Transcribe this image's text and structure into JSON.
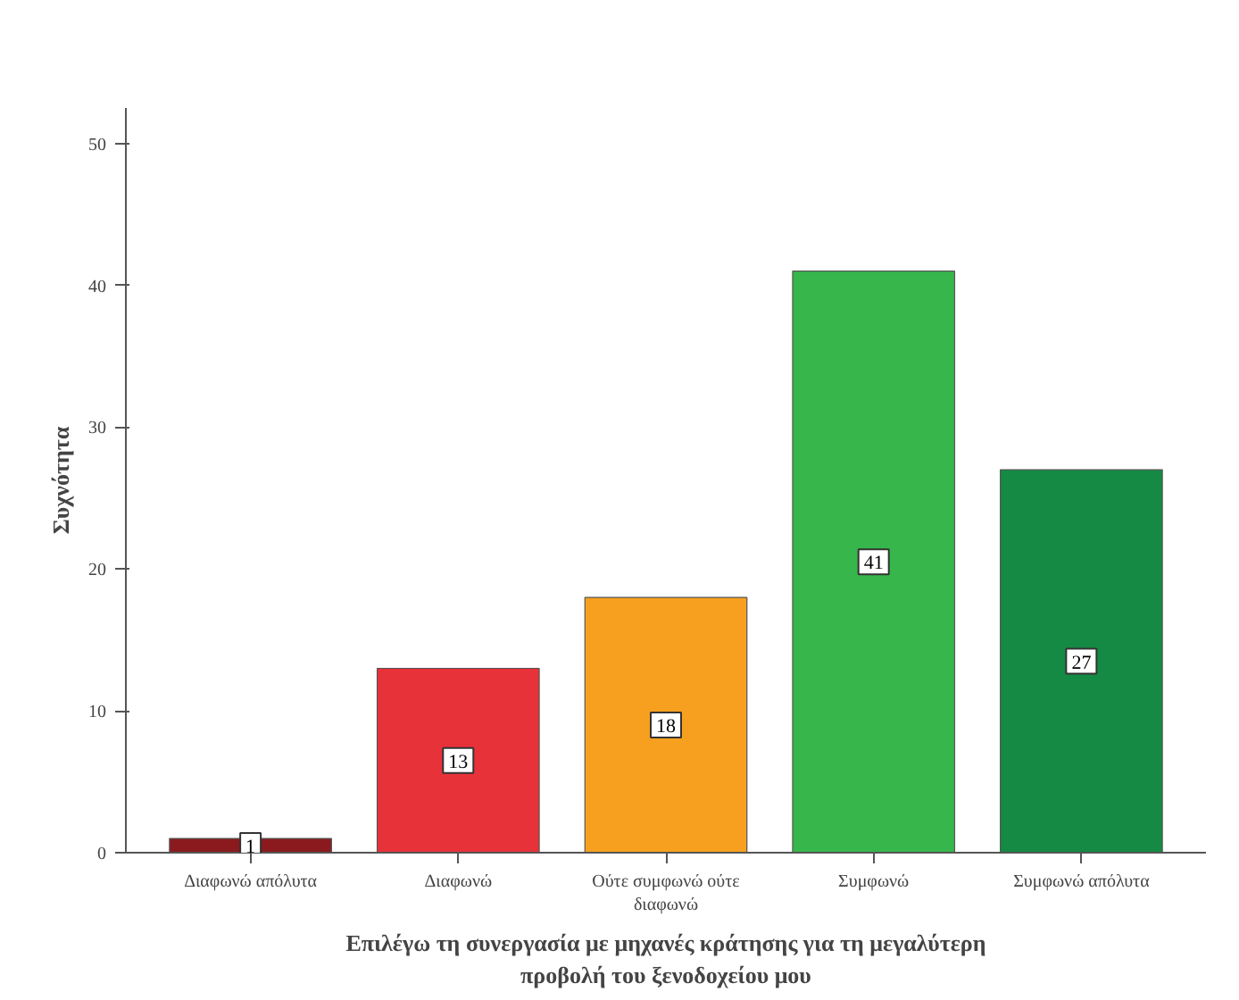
{
  "chart_data": {
    "type": "bar",
    "xlabel": "Επιλέγω τη συνεργασία με μηχανές κράτησης για τη μεγαλύτερη\nπροβολή του ξενοδοχείου μου",
    "ylabel": "Συχνότητα",
    "categories": [
      "Διαφωνώ απόλυτα",
      "Διαφωνώ",
      "Ούτε συμφωνώ ούτε\nδιαφωνώ",
      "Συμφωνώ",
      "Συμφωνώ απόλυτα"
    ],
    "values": [
      1,
      13,
      18,
      41,
      27
    ],
    "colors": [
      "#8b1a1f",
      "#e8323a",
      "#f7a01f",
      "#37b64b",
      "#148a44"
    ],
    "ylim": [
      0,
      52.5
    ],
    "yticks": [
      0,
      10,
      20,
      30,
      40,
      50
    ],
    "grid": false,
    "data_labels": true
  }
}
